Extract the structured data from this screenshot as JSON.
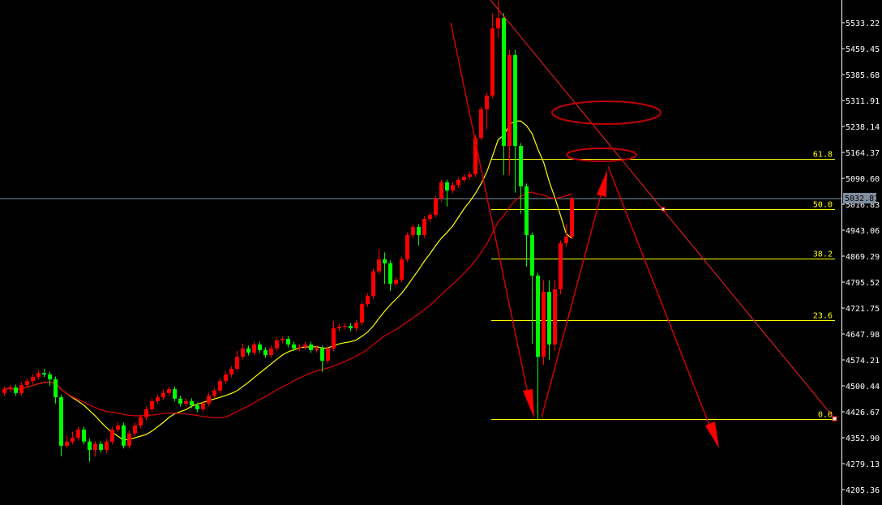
{
  "chart_data": {
    "type": "candlestick",
    "title": "",
    "colors": {
      "background": "#000000",
      "bull": "#ff0000",
      "bear": "#00ff00",
      "ma_fast": "#ffff00",
      "ma_slow": "#e00000",
      "fib": "#ffff00",
      "drawings": "#e00000",
      "price_line": "#7f8fa0",
      "axis_text": "#ffffff"
    },
    "y_axis": {
      "position": "right",
      "ticks": [
        "5533.22",
        "5459.45",
        "5385.68",
        "5311.91",
        "5238.14",
        "5164.37",
        "5090.60",
        "5016.83",
        "4943.06",
        "4869.29",
        "4795.52",
        "4721.75",
        "4647.98",
        "4574.21",
        "4500.44",
        "4426.67",
        "4352.90",
        "4279.13",
        "4205.36"
      ],
      "range": [
        4190,
        5600
      ]
    },
    "current_price": {
      "label": "5032.81",
      "value": 5032.81
    },
    "fibonacci": [
      {
        "label": "61.8",
        "value": 5146
      },
      {
        "label": "50.0",
        "value": 5003
      },
      {
        "label": "38.2",
        "value": 4862
      },
      {
        "label": "23.6",
        "value": 4687
      },
      {
        "label": "0.0",
        "value": 4406
      }
    ],
    "open": [
      4480,
      4491,
      4496,
      4480,
      4503,
      4514,
      4526,
      4537,
      4533,
      4519,
      4468,
      4330,
      4342,
      4353,
      4376,
      4342,
      4318,
      4335,
      4318,
      4342,
      4376,
      4388,
      4330,
      4365,
      4388,
      4411,
      4434,
      4457,
      4468,
      4480,
      4491,
      4464,
      4450,
      4457,
      4445,
      4434,
      4450,
      4473,
      4487,
      4514,
      4533,
      4549,
      4583,
      4607,
      4595,
      4618,
      4602,
      4588,
      4607,
      4630,
      4634,
      4618,
      4607,
      4611,
      4618,
      4602,
      4607,
      4572,
      4607,
      4664,
      4669,
      4671,
      4664,
      4680,
      4733,
      4756,
      4826,
      4860,
      4849,
      4791,
      4802,
      4860,
      4929,
      4952,
      4929,
      4975,
      4987,
      5033,
      5079,
      5056,
      5072,
      5086,
      5095,
      5102,
      5206,
      5287,
      5326,
      5517,
      5547,
      5183,
      5441,
      5183,
      5068,
      4929,
      4814,
      4583,
      4768,
      4618,
      4775,
      4906,
      4925
    ],
    "high": [
      4499,
      4504,
      4504,
      4511,
      4522,
      4534,
      4545,
      4548,
      4541,
      4527,
      4476,
      4360,
      4370,
      4384,
      4384,
      4350,
      4343,
      4343,
      4350,
      4384,
      4396,
      4396,
      4373,
      4396,
      4419,
      4442,
      4465,
      4476,
      4490,
      4499,
      4499,
      4472,
      4465,
      4465,
      4453,
      4458,
      4481,
      4495,
      4522,
      4541,
      4557,
      4600,
      4620,
      4615,
      4626,
      4626,
      4610,
      4615,
      4638,
      4642,
      4642,
      4626,
      4619,
      4626,
      4626,
      4615,
      4615,
      4615,
      4685,
      4677,
      4679,
      4679,
      4688,
      4741,
      4764,
      4834,
      4890,
      4880,
      4857,
      4810,
      4868,
      4937,
      4960,
      4960,
      4983,
      4995,
      5041,
      5087,
      5087,
      5080,
      5094,
      5103,
      5110,
      5214,
      5295,
      5334,
      5560,
      5597,
      5560,
      5455,
      5455,
      5191,
      5076,
      4937,
      4822,
      4800,
      4800,
      4800,
      4914,
      4960,
      5040
    ],
    "low": [
      4472,
      4483,
      4472,
      4472,
      4495,
      4506,
      4518,
      4525,
      4500,
      4450,
      4300,
      4322,
      4334,
      4345,
      4334,
      4285,
      4300,
      4310,
      4310,
      4334,
      4368,
      4322,
      4322,
      4357,
      4380,
      4403,
      4426,
      4449,
      4460,
      4472,
      4456,
      4442,
      4442,
      4437,
      4426,
      4426,
      4442,
      4465,
      4479,
      4506,
      4525,
      4541,
      4575,
      4587,
      4587,
      4594,
      4580,
      4580,
      4599,
      4622,
      4610,
      4599,
      4599,
      4603,
      4594,
      4594,
      4540,
      4564,
      4599,
      4656,
      4661,
      4656,
      4656,
      4672,
      4725,
      4748,
      4818,
      4790,
      4770,
      4783,
      4794,
      4852,
      4921,
      4900,
      4921,
      4967,
      4979,
      5025,
      5010,
      5048,
      5064,
      5078,
      5087,
      5094,
      5198,
      5230,
      5318,
      5490,
      5100,
      5100,
      5050,
      4990,
      4840,
      4620,
      4406,
      4560,
      4575,
      4600,
      4760,
      4895,
      4917
    ],
    "close": [
      4491,
      4496,
      4480,
      4503,
      4514,
      4526,
      4537,
      4533,
      4519,
      4468,
      4330,
      4342,
      4353,
      4376,
      4342,
      4318,
      4335,
      4318,
      4342,
      4376,
      4388,
      4330,
      4365,
      4388,
      4411,
      4434,
      4457,
      4468,
      4480,
      4491,
      4464,
      4450,
      4457,
      4445,
      4434,
      4450,
      4473,
      4487,
      4514,
      4533,
      4549,
      4583,
      4607,
      4595,
      4618,
      4602,
      4588,
      4607,
      4630,
      4634,
      4618,
      4607,
      4611,
      4618,
      4602,
      4607,
      4572,
      4607,
      4664,
      4669,
      4671,
      4664,
      4680,
      4733,
      4756,
      4826,
      4860,
      4849,
      4791,
      4802,
      4860,
      4929,
      4952,
      4929,
      4975,
      4987,
      5033,
      5079,
      5056,
      5072,
      5086,
      5095,
      5102,
      5206,
      5287,
      5326,
      5517,
      5547,
      5183,
      5441,
      5183,
      5068,
      4929,
      4814,
      4583,
      4768,
      4618,
      4775,
      4906,
      4925,
      5032.81
    ]
  }
}
